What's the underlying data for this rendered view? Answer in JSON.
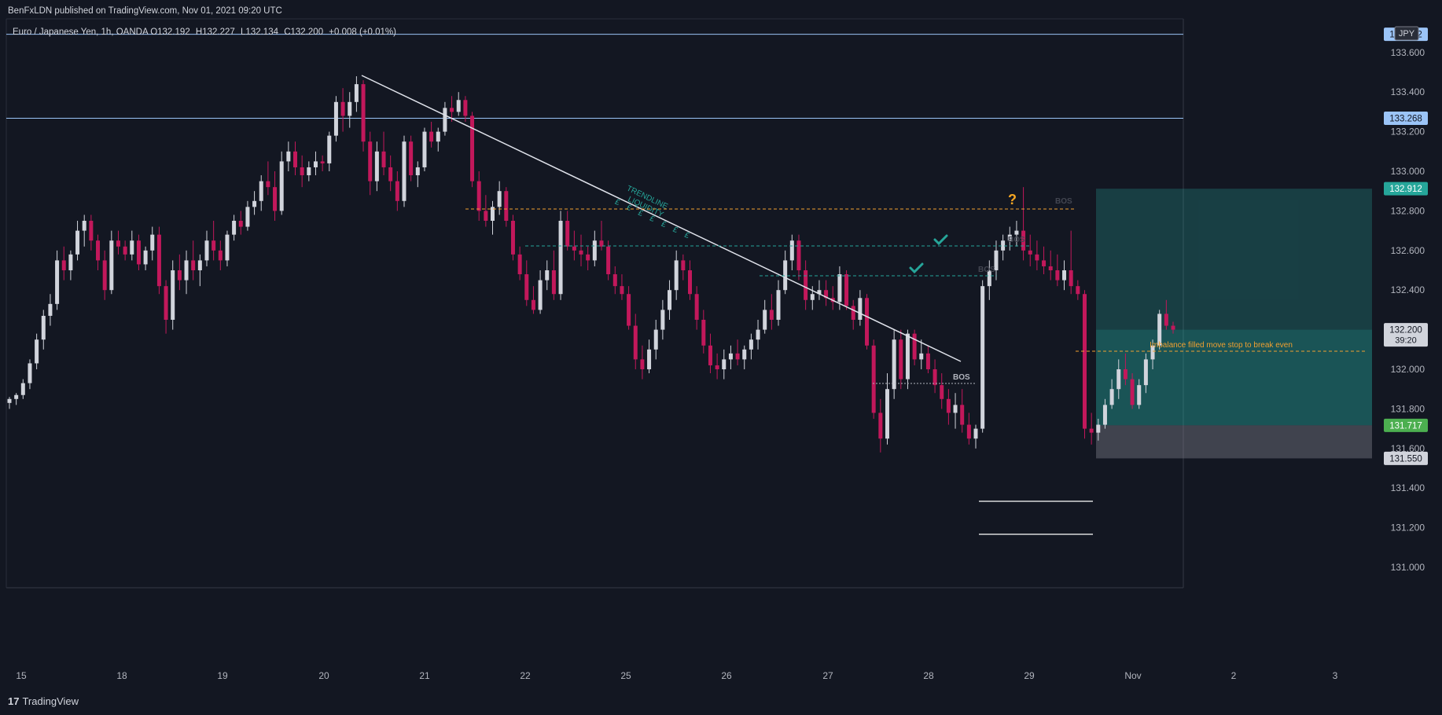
{
  "header": {
    "published_by": "BenFxLDN published on TradingView.com, Nov 01, 2021 09:20 UTC",
    "symbol": "Euro / Japanese Yen, 1h, OANDA",
    "open_label": "O",
    "open": "132.192",
    "high_label": "H",
    "high": "132.227",
    "low_label": "L",
    "low": "132.134",
    "close_label": "C",
    "close": "132.200",
    "change": "+0.008 (+0.01%)"
  },
  "currency": "JPY",
  "footer": {
    "logo": "17",
    "brand": "TradingView"
  },
  "chart_data": {
    "type": "candlestick",
    "ylim": [
      131.0,
      133.7
    ],
    "y_ticks": [
      131.0,
      131.2,
      131.4,
      131.6,
      131.8,
      132.0,
      132.2,
      132.4,
      132.6,
      132.8,
      133.0,
      133.2,
      133.4,
      133.6
    ],
    "y_tick_labels": [
      "131.000",
      "131.200",
      "131.400",
      "131.600",
      "131.800",
      "132.000",
      "132.200",
      "132.400",
      "132.600",
      "132.800",
      "133.000",
      "133.200",
      "133.400",
      "133.600"
    ],
    "x_ticks": [
      "15",
      "18",
      "19",
      "20",
      "21",
      "22",
      "25",
      "26",
      "27",
      "28",
      "29",
      "Nov",
      "2",
      "3"
    ],
    "price_labels": [
      {
        "text": "133.692",
        "value": 133.692,
        "color": "#9bc4f7",
        "text_color": "#131722"
      },
      {
        "text": "133.268",
        "value": 133.268,
        "color": "#9bc4f7",
        "text_color": "#131722"
      },
      {
        "text": "132.912",
        "value": 132.912,
        "color": "#26a69a",
        "text_color": "#ffffff"
      },
      {
        "text": "132.200",
        "value": 132.2,
        "color": "#d1d4dc",
        "text_color": "#131722",
        "sub": "39:20"
      },
      {
        "text": "131.717",
        "value": 131.717,
        "color": "#4caf50",
        "text_color": "#ffffff"
      },
      {
        "text": "131.550",
        "value": 131.55,
        "color": "#d1d4dc",
        "text_color": "#131722"
      }
    ],
    "horizontal_lines": [
      133.692,
      133.268
    ],
    "annotations": {
      "trendline_label": [
        "TRENDLINE",
        "LIQUIDITY"
      ],
      "liquidity_marks": "£ £ £ £ £ £ £",
      "bos_labels": [
        "BOS",
        "BOS",
        "BOS",
        "BOS"
      ],
      "question_mark": "?",
      "imbalance_note": "Imbalance filled move stop to break even"
    },
    "position": {
      "entry": 131.717,
      "stop": 131.55,
      "target": 132.912
    },
    "candles": [
      [
        131.83,
        131.86,
        131.8,
        131.85
      ],
      [
        131.85,
        131.88,
        131.82,
        131.87
      ],
      [
        131.87,
        131.95,
        131.85,
        131.93
      ],
      [
        131.93,
        132.05,
        131.9,
        132.03
      ],
      [
        132.03,
        132.18,
        132.0,
        132.15
      ],
      [
        132.15,
        132.3,
        132.1,
        132.27
      ],
      [
        132.27,
        132.38,
        132.22,
        132.33
      ],
      [
        132.33,
        132.6,
        132.3,
        132.55
      ],
      [
        132.55,
        132.62,
        132.45,
        132.5
      ],
      [
        132.5,
        132.6,
        132.45,
        132.58
      ],
      [
        132.58,
        132.75,
        132.55,
        132.7
      ],
      [
        132.7,
        132.78,
        132.62,
        132.75
      ],
      [
        132.75,
        132.78,
        132.6,
        132.65
      ],
      [
        132.65,
        132.68,
        132.5,
        132.55
      ],
      [
        132.55,
        132.6,
        132.35,
        132.4
      ],
      [
        132.4,
        132.7,
        132.38,
        132.65
      ],
      [
        132.65,
        132.7,
        132.58,
        132.62
      ],
      [
        132.62,
        132.65,
        132.55,
        132.58
      ],
      [
        132.58,
        132.7,
        132.55,
        132.65
      ],
      [
        132.65,
        132.68,
        132.5,
        132.53
      ],
      [
        132.53,
        132.62,
        132.5,
        132.6
      ],
      [
        132.6,
        132.72,
        132.55,
        132.68
      ],
      [
        132.68,
        132.72,
        132.38,
        132.42
      ],
      [
        132.42,
        132.45,
        132.18,
        132.25
      ],
      [
        132.25,
        132.55,
        132.2,
        132.5
      ],
      [
        132.5,
        132.58,
        132.4,
        132.45
      ],
      [
        132.45,
        132.6,
        132.38,
        132.55
      ],
      [
        132.55,
        132.65,
        132.45,
        132.5
      ],
      [
        132.5,
        132.58,
        132.42,
        132.55
      ],
      [
        132.55,
        132.7,
        132.52,
        132.65
      ],
      [
        132.65,
        132.75,
        132.55,
        132.6
      ],
      [
        132.6,
        132.65,
        132.5,
        132.55
      ],
      [
        132.55,
        132.7,
        132.52,
        132.68
      ],
      [
        132.68,
        132.78,
        132.65,
        132.75
      ],
      [
        132.75,
        132.8,
        132.68,
        132.72
      ],
      [
        132.72,
        132.85,
        132.7,
        132.82
      ],
      [
        132.82,
        132.9,
        132.78,
        132.85
      ],
      [
        132.85,
        132.98,
        132.8,
        132.95
      ],
      [
        132.95,
        133.05,
        132.88,
        132.92
      ],
      [
        132.92,
        133.0,
        132.75,
        132.8
      ],
      [
        132.8,
        133.1,
        132.78,
        133.05
      ],
      [
        133.05,
        133.15,
        133.0,
        133.1
      ],
      [
        133.1,
        133.15,
        132.98,
        133.02
      ],
      [
        133.02,
        133.08,
        132.92,
        132.98
      ],
      [
        132.98,
        133.05,
        132.95,
        133.02
      ],
      [
        133.02,
        133.1,
        132.98,
        133.05
      ],
      [
        133.05,
        133.08,
        133.0,
        133.04
      ],
      [
        133.04,
        133.2,
        133.0,
        133.18
      ],
      [
        133.18,
        133.38,
        133.15,
        133.35
      ],
      [
        133.35,
        133.42,
        133.2,
        133.28
      ],
      [
        133.28,
        133.4,
        133.22,
        133.35
      ],
      [
        133.35,
        133.48,
        133.3,
        133.44
      ],
      [
        133.44,
        133.46,
        133.1,
        133.15
      ],
      [
        133.15,
        133.2,
        132.88,
        132.95
      ],
      [
        132.95,
        133.15,
        132.9,
        133.1
      ],
      [
        133.1,
        133.2,
        132.98,
        133.02
      ],
      [
        133.02,
        133.08,
        132.9,
        132.95
      ],
      [
        132.95,
        133.0,
        132.8,
        132.85
      ],
      [
        132.85,
        133.18,
        132.82,
        133.15
      ],
      [
        133.15,
        133.18,
        132.95,
        132.98
      ],
      [
        132.98,
        133.05,
        132.92,
        133.02
      ],
      [
        133.02,
        133.22,
        133.0,
        133.2
      ],
      [
        133.2,
        133.25,
        133.12,
        133.15
      ],
      [
        133.15,
        133.22,
        133.1,
        133.2
      ],
      [
        133.2,
        133.35,
        133.18,
        133.32
      ],
      [
        133.32,
        133.38,
        133.25,
        133.3
      ],
      [
        133.3,
        133.4,
        133.28,
        133.36
      ],
      [
        133.36,
        133.38,
        133.25,
        133.28
      ],
      [
        133.28,
        133.3,
        132.92,
        132.95
      ],
      [
        132.95,
        133.0,
        132.75,
        132.8
      ],
      [
        132.8,
        132.88,
        132.72,
        132.75
      ],
      [
        132.75,
        132.85,
        132.68,
        132.82
      ],
      [
        132.82,
        132.95,
        132.78,
        132.9
      ],
      [
        132.9,
        132.92,
        132.72,
        132.75
      ],
      [
        132.75,
        132.78,
        132.55,
        132.58
      ],
      [
        132.58,
        132.62,
        132.45,
        132.48
      ],
      [
        132.48,
        132.55,
        132.32,
        132.35
      ],
      [
        132.35,
        132.42,
        132.28,
        132.3
      ],
      [
        132.3,
        132.5,
        132.28,
        132.45
      ],
      [
        132.45,
        132.55,
        132.4,
        132.5
      ],
      [
        132.5,
        132.6,
        132.35,
        132.38
      ],
      [
        132.38,
        132.8,
        132.35,
        132.75
      ],
      [
        132.75,
        132.8,
        132.6,
        132.62
      ],
      [
        132.62,
        132.7,
        132.55,
        132.6
      ],
      [
        132.6,
        132.68,
        132.52,
        132.58
      ],
      [
        132.58,
        132.62,
        132.5,
        132.55
      ],
      [
        132.55,
        132.7,
        132.52,
        132.65
      ],
      [
        132.65,
        132.75,
        132.6,
        132.62
      ],
      [
        132.62,
        132.65,
        132.45,
        132.48
      ],
      [
        132.48,
        132.52,
        132.38,
        132.42
      ],
      [
        132.42,
        132.48,
        132.35,
        132.38
      ],
      [
        132.38,
        132.42,
        132.2,
        132.22
      ],
      [
        132.22,
        132.28,
        132.0,
        132.05
      ],
      [
        132.05,
        132.12,
        131.95,
        132.0
      ],
      [
        132.0,
        132.15,
        131.98,
        132.1
      ],
      [
        132.1,
        132.25,
        132.05,
        132.2
      ],
      [
        132.2,
        132.35,
        132.15,
        132.3
      ],
      [
        132.3,
        132.45,
        132.25,
        132.4
      ],
      [
        132.4,
        132.6,
        132.35,
        132.55
      ],
      [
        132.55,
        132.58,
        132.45,
        132.5
      ],
      [
        132.5,
        132.55,
        132.35,
        132.38
      ],
      [
        132.38,
        132.42,
        132.2,
        132.25
      ],
      [
        132.25,
        132.3,
        132.08,
        132.12
      ],
      [
        132.12,
        132.18,
        131.98,
        132.02
      ],
      [
        132.02,
        132.08,
        131.95,
        132.0
      ],
      [
        132.0,
        132.1,
        131.95,
        132.05
      ],
      [
        132.05,
        132.12,
        132.0,
        132.08
      ],
      [
        132.08,
        132.15,
        132.02,
        132.05
      ],
      [
        132.05,
        132.12,
        132.0,
        132.1
      ],
      [
        132.1,
        132.18,
        132.05,
        132.15
      ],
      [
        132.15,
        132.25,
        132.1,
        132.2
      ],
      [
        132.2,
        132.35,
        132.18,
        132.3
      ],
      [
        132.3,
        132.38,
        132.2,
        132.25
      ],
      [
        132.25,
        132.45,
        132.22,
        132.4
      ],
      [
        132.4,
        132.6,
        132.38,
        132.55
      ],
      [
        132.55,
        132.68,
        132.5,
        132.65
      ],
      [
        132.65,
        132.68,
        132.45,
        132.5
      ],
      [
        132.5,
        132.55,
        132.3,
        132.35
      ],
      [
        132.35,
        132.42,
        132.3,
        132.38
      ],
      [
        132.38,
        132.45,
        132.35,
        132.4
      ],
      [
        132.4,
        132.45,
        132.32,
        132.36
      ],
      [
        132.36,
        132.42,
        132.3,
        132.34
      ],
      [
        132.34,
        132.52,
        132.3,
        132.48
      ],
      [
        132.48,
        132.5,
        132.3,
        132.32
      ],
      [
        132.32,
        132.35,
        132.2,
        132.25
      ],
      [
        132.25,
        132.4,
        132.22,
        132.36
      ],
      [
        132.36,
        132.38,
        132.1,
        132.12
      ],
      [
        132.12,
        132.15,
        131.75,
        131.78
      ],
      [
        131.78,
        131.85,
        131.58,
        131.65
      ],
      [
        131.65,
        131.98,
        131.62,
        131.9
      ],
      [
        131.9,
        132.2,
        131.85,
        132.15
      ],
      [
        132.15,
        132.2,
        131.9,
        131.95
      ],
      [
        131.95,
        132.2,
        131.9,
        132.18
      ],
      [
        132.18,
        132.2,
        132.02,
        132.05
      ],
      [
        132.05,
        132.15,
        132.0,
        132.08
      ],
      [
        132.08,
        132.12,
        131.98,
        132.0
      ],
      [
        132.0,
        132.05,
        131.88,
        131.92
      ],
      [
        131.92,
        131.98,
        131.8,
        131.85
      ],
      [
        131.85,
        131.9,
        131.72,
        131.78
      ],
      [
        131.78,
        131.88,
        131.7,
        131.82
      ],
      [
        131.82,
        131.9,
        131.68,
        131.72
      ],
      [
        131.72,
        131.78,
        131.62,
        131.65
      ],
      [
        131.65,
        131.72,
        131.6,
        131.7
      ],
      [
        131.7,
        132.45,
        131.68,
        132.42
      ],
      [
        132.42,
        132.55,
        132.35,
        132.5
      ],
      [
        132.5,
        132.65,
        132.45,
        132.6
      ],
      [
        132.6,
        132.68,
        132.55,
        132.65
      ],
      [
        132.65,
        132.72,
        132.6,
        132.68
      ],
      [
        132.68,
        132.75,
        132.62,
        132.7
      ],
      [
        132.7,
        132.92,
        132.55,
        132.6
      ],
      [
        132.6,
        132.68,
        132.52,
        132.58
      ],
      [
        132.58,
        132.65,
        132.5,
        132.55
      ],
      [
        132.55,
        132.62,
        132.48,
        132.52
      ],
      [
        132.52,
        132.6,
        132.45,
        132.5
      ],
      [
        132.5,
        132.58,
        132.42,
        132.45
      ],
      [
        132.45,
        132.55,
        132.4,
        132.5
      ],
      [
        132.5,
        132.7,
        132.38,
        132.42
      ],
      [
        132.42,
        132.45,
        132.35,
        132.38
      ],
      [
        132.38,
        132.4,
        131.65,
        131.7
      ],
      [
        131.7,
        131.78,
        131.62,
        131.68
      ],
      [
        131.68,
        131.75,
        131.64,
        131.72
      ],
      [
        131.72,
        131.85,
        131.7,
        131.82
      ],
      [
        131.82,
        131.95,
        131.8,
        131.9
      ],
      [
        131.9,
        132.05,
        131.85,
        132.0
      ],
      [
        132.0,
        132.08,
        131.92,
        131.95
      ],
      [
        131.95,
        131.98,
        131.8,
        131.82
      ],
      [
        131.82,
        131.95,
        131.8,
        131.92
      ],
      [
        131.92,
        132.08,
        131.88,
        132.05
      ],
      [
        132.05,
        132.15,
        132.0,
        132.12
      ],
      [
        132.12,
        132.3,
        132.1,
        132.28
      ],
      [
        132.28,
        132.35,
        132.2,
        132.22
      ],
      [
        132.22,
        132.24,
        132.18,
        132.2
      ]
    ]
  }
}
